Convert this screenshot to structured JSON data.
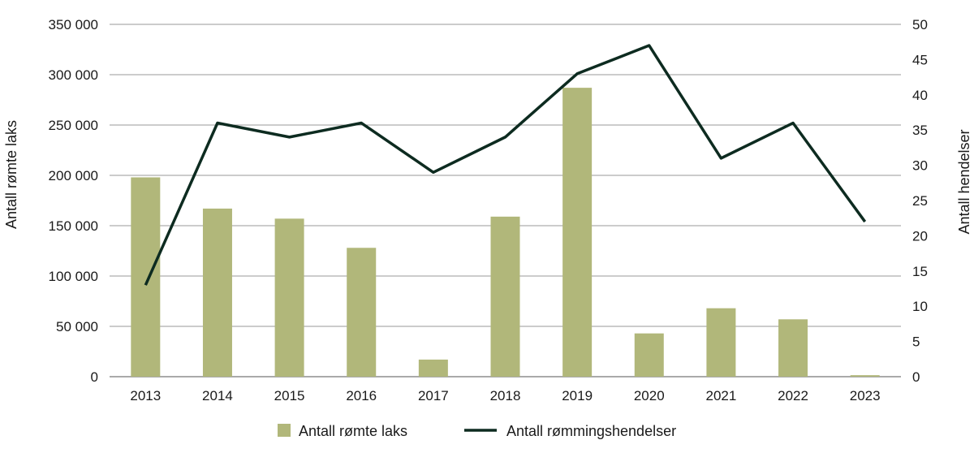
{
  "chart_data": {
    "type": "bar",
    "categories": [
      "2013",
      "2014",
      "2015",
      "2016",
      "2017",
      "2018",
      "2019",
      "2020",
      "2021",
      "2022",
      "2023"
    ],
    "series": [
      {
        "name": "Antall rømte laks",
        "type": "bar",
        "axis": "left",
        "color": "#b1b77a",
        "values": [
          198000,
          167000,
          157000,
          128000,
          17000,
          159000,
          287000,
          43000,
          68000,
          57000,
          1500
        ]
      },
      {
        "name": "Antall rømmingshendelser",
        "type": "line",
        "axis": "right",
        "color": "#0d2b20",
        "values": [
          13,
          36,
          34,
          36,
          29,
          34,
          43,
          47,
          31,
          36,
          22
        ]
      }
    ],
    "ylabel": "Antall rømte laks",
    "ylabel_right": "Antall hendelser",
    "ylim": [
      0,
      350000
    ],
    "ylim_right": [
      0,
      50
    ],
    "yticks": [
      "0",
      "50 000",
      "100 000",
      "150 000",
      "200 000",
      "250 000",
      "300 000",
      "350 000"
    ],
    "yticks_right": [
      "0",
      "5",
      "10",
      "15",
      "20",
      "25",
      "30",
      "35",
      "40",
      "45",
      "50"
    ],
    "grid": true,
    "legend_position": "bottom"
  }
}
